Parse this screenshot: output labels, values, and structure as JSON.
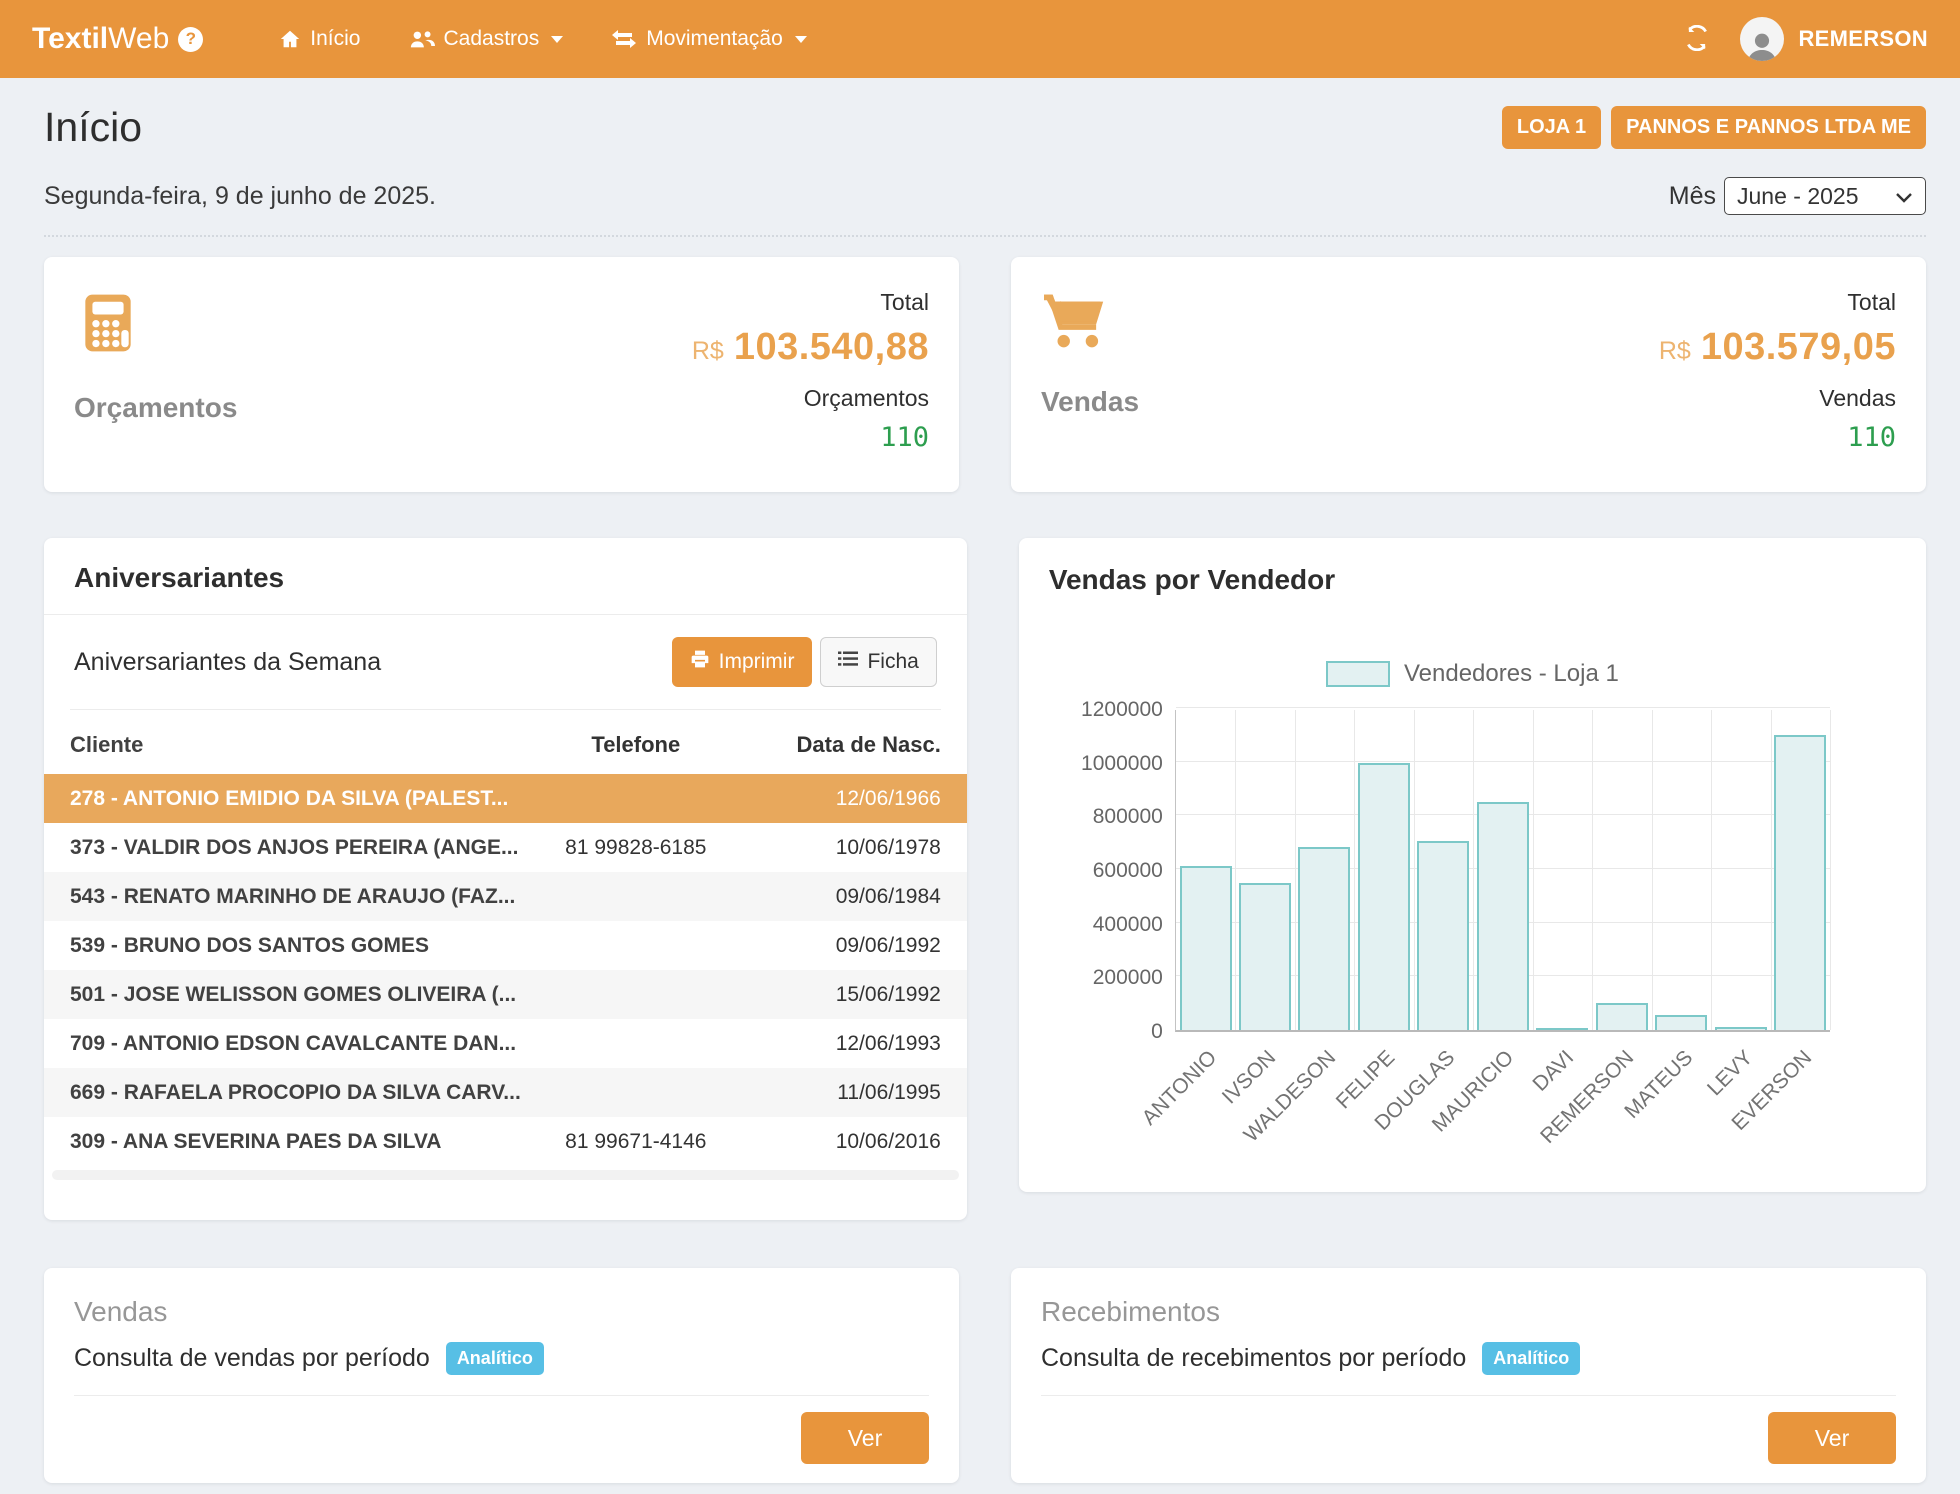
{
  "navbar": {
    "brand_bold": "Textil",
    "brand_light": "Web",
    "help": "?",
    "items": [
      {
        "icon": "home-icon",
        "label": "Início",
        "caret": false
      },
      {
        "icon": "users-icon",
        "label": "Cadastros",
        "caret": true
      },
      {
        "icon": "exchange-icon",
        "label": "Movimentação",
        "caret": true
      }
    ],
    "user": "REMERSON"
  },
  "page": {
    "title": "Início",
    "badges": [
      "LOJA 1",
      "PANNOS E PANNOS LTDA ME"
    ],
    "date": "Segunda-feira, 9 de junho de 2025.",
    "month_label": "Mês",
    "month_value": "June - 2025"
  },
  "summary_cards": [
    {
      "icon": "calculator-icon",
      "label": "Orçamentos",
      "total_label": "Total",
      "currency": "R$",
      "total_value": "103.540,88",
      "count_label": "Orçamentos",
      "count": "110"
    },
    {
      "icon": "cart-icon",
      "label": "Vendas",
      "total_label": "Total",
      "currency": "R$",
      "total_value": "103.579,05",
      "count_label": "Vendas",
      "count": "110"
    }
  ],
  "birthdays": {
    "title": "Aniversariantes",
    "subtitle": "Aniversariantes da Semana",
    "print_button": "Imprimir",
    "ficha_button": "Ficha",
    "columns": [
      "Cliente",
      "Telefone",
      "Data de Nasc."
    ],
    "rows": [
      {
        "cliente": "278 - ANTONIO EMIDIO DA SILVA (PALEST...",
        "telefone": "",
        "nasc": "12/06/1966",
        "highlight": true
      },
      {
        "cliente": "373 - VALDIR DOS ANJOS PEREIRA (ANGE...",
        "telefone": "81 99828-6185",
        "nasc": "10/06/1978",
        "highlight": false
      },
      {
        "cliente": "543 - RENATO MARINHO DE ARAUJO (FAZ...",
        "telefone": "",
        "nasc": "09/06/1984",
        "highlight": false
      },
      {
        "cliente": "539 - BRUNO DOS SANTOS GOMES",
        "telefone": "",
        "nasc": "09/06/1992",
        "highlight": false
      },
      {
        "cliente": "501 - JOSE WELISSON GOMES OLIVEIRA (...",
        "telefone": "",
        "nasc": "15/06/1992",
        "highlight": false
      },
      {
        "cliente": "709 - ANTONIO EDSON CAVALCANTE DAN...",
        "telefone": "",
        "nasc": "12/06/1993",
        "highlight": false
      },
      {
        "cliente": "669 - RAFAELA PROCOPIO DA SILVA CARV...",
        "telefone": "",
        "nasc": "11/06/1995",
        "highlight": false
      },
      {
        "cliente": "309 - ANA SEVERINA PAES DA SILVA",
        "telefone": "81 99671-4146",
        "nasc": "10/06/2016",
        "highlight": false
      }
    ]
  },
  "chart_data": {
    "type": "bar",
    "title": "Vendas por Vendedor",
    "legend": "Vendedores - Loja 1",
    "legend_position": "top",
    "grid": true,
    "categories": [
      "ANTONIO",
      "IVSON",
      "WALDESON",
      "FELIPE",
      "DOUGLAS",
      "MAURICIO",
      "DAVI",
      "REMERSON",
      "MATEUS",
      "LEVY",
      "EVERSON"
    ],
    "values": [
      612000,
      548000,
      682000,
      994000,
      706000,
      848000,
      2000,
      100000,
      57000,
      13000,
      1098000
    ],
    "xlabel": "",
    "ylabel": "",
    "ylim": [
      0,
      1200000
    ],
    "ytick_step": 200000
  },
  "bottom_cards": [
    {
      "title": "Vendas",
      "description": "Consulta de vendas por período",
      "badge": "Analítico",
      "button": "Ver"
    },
    {
      "title": "Recebimentos",
      "description": "Consulta de recebimentos por período",
      "badge": "Analítico",
      "button": "Ver"
    }
  ],
  "colors": {
    "accent_orange": "#e8953c",
    "value_orange": "#e9a14d",
    "highlight_row": "#e8a85c",
    "count_green": "#2d9e4f",
    "info_badge_blue": "#57bfe5",
    "bar_fill": "#e3f1f2",
    "bar_border": "#7cc8c8",
    "page_background": "#edf0f4"
  }
}
